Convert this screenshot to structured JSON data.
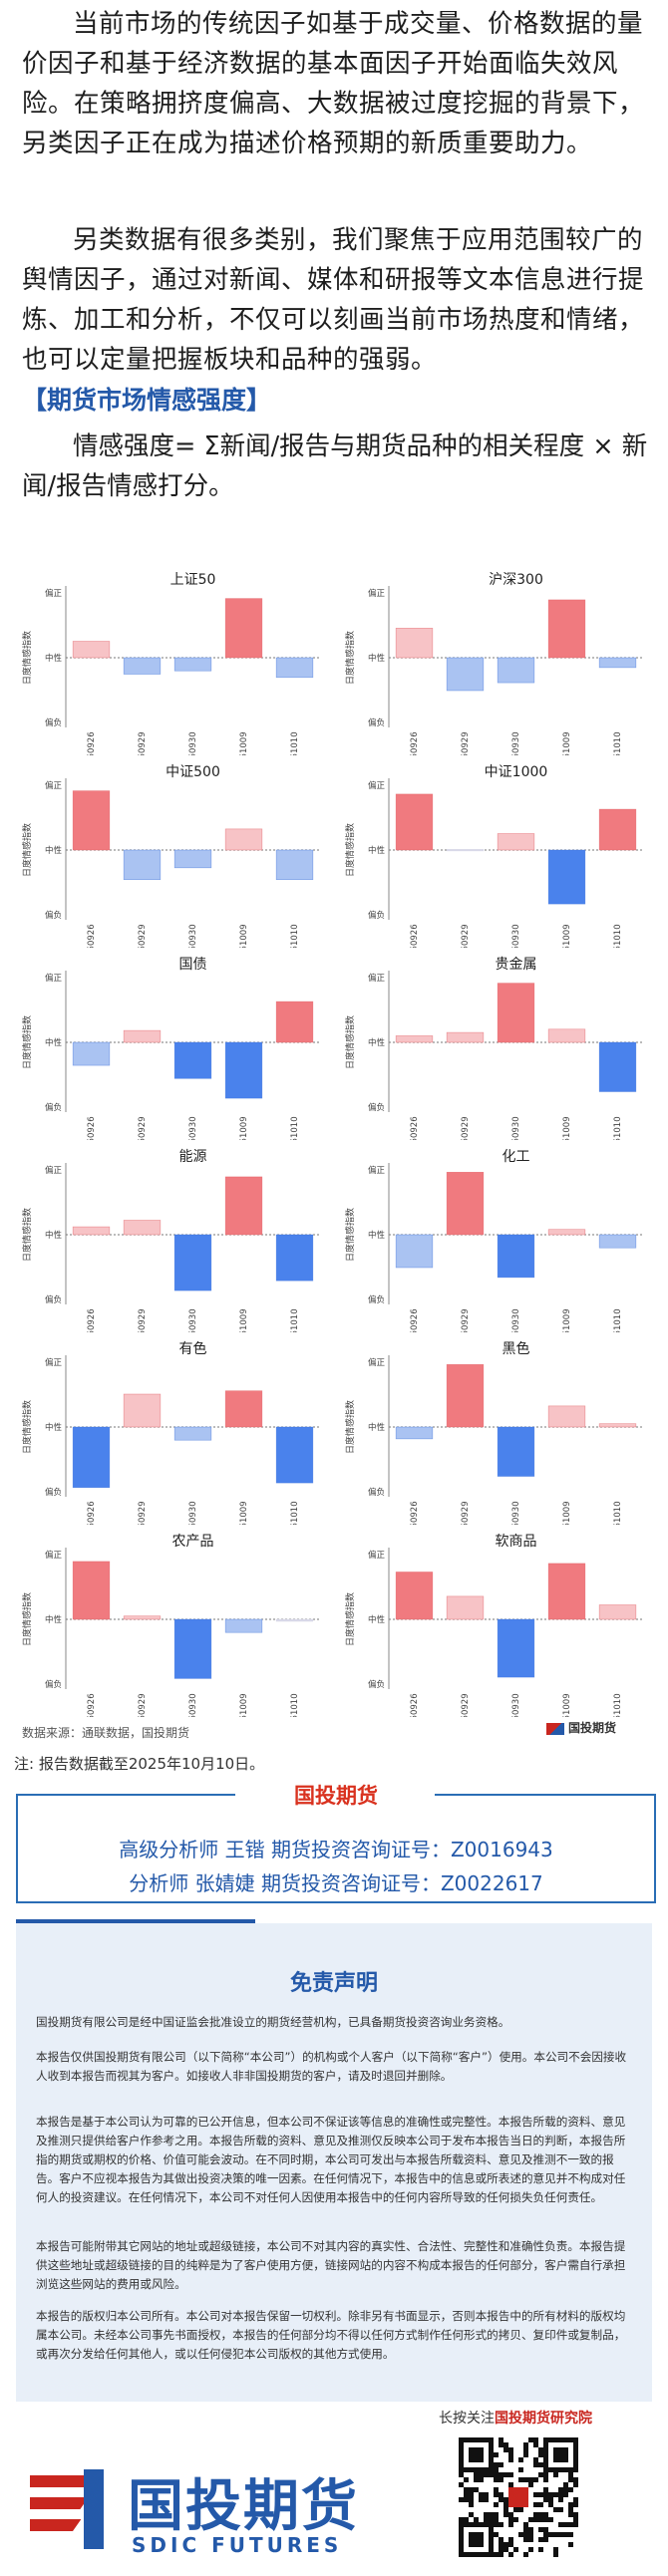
{
  "intro": {
    "p1": "当前市场的传统因子如基于成交量、价格数据的量价因子和基于经济数据的基本面因子开始面临失效风险。在策略拥挤度偏高、大数据被过度挖掘的背景下，另类因子正在成为描述价格预期的新质重要助力。",
    "p2": "另类数据有很多类别，我们聚焦于应用范围较广的舆情因子，通过对新闻、媒体和研报等文本信息进行提炼、加工和分析，不仅可以刻画当前市场热度和情绪，也可以定量把握板块和品种的强弱。"
  },
  "section": {
    "title": "【期货市场情感强度】",
    "formula": "情感强度= Σ新闻/报告与期货品种的相关程度 × 新闻/报告情感打分。"
  },
  "colors": {
    "pos_strong": "#f07a7f",
    "pos_light": "#f7c3c6",
    "neg_strong": "#4a82ec",
    "neg_light": "#aac3f2",
    "neutral": "#dcdcec"
  },
  "chart_data": [
    {
      "type": "bar",
      "title": "上证50",
      "ylabel": "日度情感指数",
      "categories": [
        "20250926",
        "20250929",
        "20250930",
        "20251009",
        "20251010"
      ],
      "values": [
        0.25,
        -0.25,
        -0.2,
        0.9,
        -0.3
      ],
      "ylim": [
        -1,
        1
      ],
      "tick_labels": [
        "偏正",
        "中性",
        "偏负"
      ]
    },
    {
      "type": "bar",
      "title": "沪深300",
      "ylabel": "日度情感指数",
      "categories": [
        "20250926",
        "20250929",
        "20250930",
        "20251009",
        "20251010"
      ],
      "values": [
        0.45,
        -0.5,
        -0.38,
        0.88,
        -0.15
      ],
      "ylim": [
        -1,
        1
      ],
      "tick_labels": [
        "偏正",
        "中性",
        "偏负"
      ]
    },
    {
      "type": "bar",
      "title": "中证500",
      "ylabel": "日度情感指数",
      "categories": [
        "20250926",
        "20250929",
        "20250930",
        "20251009",
        "20251010"
      ],
      "values": [
        0.9,
        -0.45,
        -0.27,
        0.32,
        -0.45
      ],
      "ylim": [
        -1,
        1
      ],
      "tick_labels": [
        "偏正",
        "中性",
        "偏负"
      ]
    },
    {
      "type": "bar",
      "title": "中证1000",
      "ylabel": "日度情感指数",
      "categories": [
        "20250926",
        "20250929",
        "20250930",
        "20251009",
        "20251010"
      ],
      "values": [
        0.85,
        0.01,
        0.25,
        -0.82,
        0.62
      ],
      "ylim": [
        -1,
        1
      ],
      "tick_labels": [
        "偏正",
        "中性",
        "偏负"
      ]
    },
    {
      "type": "bar",
      "title": "国债",
      "ylabel": "日度情感指数",
      "categories": [
        "20250926",
        "20250929",
        "20250930",
        "20251009",
        "20251010"
      ],
      "values": [
        -0.35,
        0.18,
        -0.55,
        -0.85,
        0.62
      ],
      "ylim": [
        -1,
        1
      ],
      "tick_labels": [
        "偏正",
        "中性",
        "偏负"
      ]
    },
    {
      "type": "bar",
      "title": "贵金属",
      "ylabel": "日度情感指数",
      "categories": [
        "20250926",
        "20250929",
        "20250930",
        "20251009",
        "20251010"
      ],
      "values": [
        0.1,
        0.15,
        0.9,
        0.2,
        -0.75
      ],
      "ylim": [
        -1,
        1
      ],
      "tick_labels": [
        "偏正",
        "中性",
        "偏负"
      ]
    },
    {
      "type": "bar",
      "title": "能源",
      "ylabel": "日度情感指数",
      "categories": [
        "20250926",
        "20250929",
        "20250930",
        "20251009",
        "20251010"
      ],
      "values": [
        0.12,
        0.22,
        -0.85,
        0.88,
        -0.7
      ],
      "ylim": [
        -1,
        1
      ],
      "tick_labels": [
        "偏正",
        "中性",
        "偏负"
      ]
    },
    {
      "type": "bar",
      "title": "化工",
      "ylabel": "日度情感指数",
      "categories": [
        "20250926",
        "20250929",
        "20250930",
        "20251009",
        "20251010"
      ],
      "values": [
        -0.5,
        0.95,
        -0.65,
        0.08,
        -0.2
      ],
      "ylim": [
        -1,
        1
      ],
      "tick_labels": [
        "偏正",
        "中性",
        "偏负"
      ]
    },
    {
      "type": "bar",
      "title": "有色",
      "ylabel": "日度情感指数",
      "categories": [
        "20250926",
        "20250929",
        "20250930",
        "20251009",
        "20251010"
      ],
      "values": [
        -0.92,
        0.5,
        -0.2,
        0.55,
        -0.85
      ],
      "ylim": [
        -1,
        1
      ],
      "tick_labels": [
        "偏正",
        "中性",
        "偏负"
      ]
    },
    {
      "type": "bar",
      "title": "黑色",
      "ylabel": "日度情感指数",
      "categories": [
        "20250926",
        "20250929",
        "20250930",
        "20251009",
        "20251010"
      ],
      "values": [
        -0.18,
        0.95,
        -0.75,
        0.32,
        0.05
      ],
      "ylim": [
        -1,
        1
      ],
      "tick_labels": [
        "偏正",
        "中性",
        "偏负"
      ]
    },
    {
      "type": "bar",
      "title": "农产品",
      "ylabel": "日度情感指数",
      "categories": [
        "20250926",
        "20250929",
        "20250930",
        "20251009",
        "20251010"
      ],
      "values": [
        0.88,
        0.05,
        -0.9,
        -0.2,
        -0.03
      ],
      "ylim": [
        -1,
        1
      ],
      "tick_labels": [
        "偏正",
        "中性",
        "偏负"
      ]
    },
    {
      "type": "bar",
      "title": "软商品",
      "ylabel": "日度情感指数",
      "categories": [
        "20250926",
        "20250929",
        "20250930",
        "20251009",
        "20251010"
      ],
      "values": [
        0.72,
        0.35,
        -0.88,
        0.85,
        0.22
      ],
      "ylim": [
        -1,
        1
      ],
      "tick_labels": [
        "偏正",
        "中性",
        "偏负"
      ]
    }
  ],
  "source": {
    "text": "数据来源：通联数据，国投期货",
    "logo_text": "国投期货"
  },
  "note": "注: 报告数据截至2025年10月10日。",
  "analysts": {
    "badge": "国投期货",
    "line1": "高级分析师  王锴  期货投资咨询证号：Z0016943",
    "line2": "分析师  张婧婕  期货投资咨询证号：Z0022617"
  },
  "disclaimer": {
    "title": "免责声明",
    "p1": "国投期货有限公司是经中国证监会批准设立的期货经营机构，已具备期货投资咨询业务资格。",
    "p2": "本报告仅供国投期货有限公司（以下简称“本公司”）的机构或个人客户（以下简称“客户”）使用。本公司不会因接收人收到本报告而视其为客户。如接收人非非国投期货的客户，请及时退回并删除。",
    "p3": "本报告是基于本公司认为可靠的已公开信息，但本公司不保证该等信息的准确性或完整性。本报告所载的资料、意见及推测只提供给客户作参考之用。本报告所载的资料、意见及推测仅反映本公司于发布本报告当日的判断，本报告所指的期货或期权的价格、价值可能会波动。在不同时期，本公司可发出与本报告所载资料、意见及推测不一致的报告。客户不应视本报告为其做出投资决策的唯一因素。在任何情况下，本报告中的信息或所表述的意见并不构成对任何人的投资建议。在任何情况下，本公司不对任何人因使用本报告中的任何内容所导致的任何损失负任何责任。",
    "p4": "本报告可能附带其它网站的地址或超级链接，本公司不对其内容的真实性、合法性、完整性和准确性负责。本报告提供这些地址或超级链接的目的纯粹是为了客户使用方便，链接网站的内容不构成本报告的任何部分，客户需自行承担浏览这些网站的费用或风险。",
    "p5": "本报告的版权归本公司所有。本公司对本报告保留一切权利。除非另有书面显示，否则本报告中的所有材料的版权均属本公司。未经本公司事先书面授权，本报告的任何部分均不得以任何方式制作任何形式的拷贝、复印件或复制品，或再次分发给任何其他人，或以任何侵犯本公司版权的其他方式使用。"
  },
  "footer": {
    "follow_prefix": "长按关注",
    "follow_name": "国投期货研究院",
    "logo_cn": "国投期货",
    "logo_en": "SDIC FUTURES"
  }
}
